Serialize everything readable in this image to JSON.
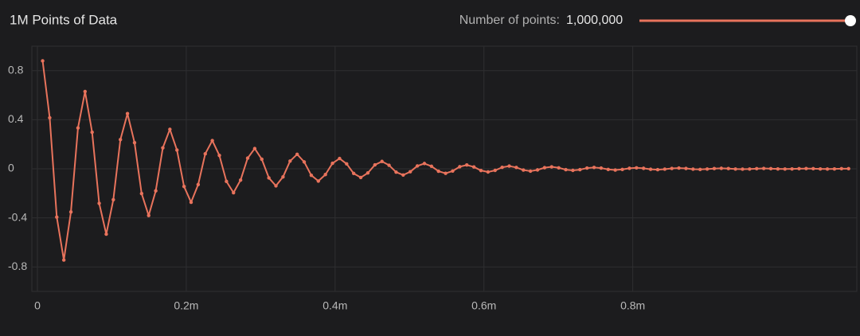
{
  "chart_data": {
    "type": "line",
    "title": "1M Points of Data",
    "color": "#e8735c",
    "grid": true,
    "xlim": [
      0,
      1.1
    ],
    "ylim": [
      -1,
      1
    ],
    "xticks": [
      0,
      {
        "value": 0.2,
        "label": "0.2m"
      },
      {
        "value": 0.4,
        "label": "0.4m"
      },
      {
        "value": 0.6,
        "label": "0.6m"
      },
      {
        "value": 0.8,
        "label": "0.8m"
      }
    ],
    "yticks": [
      -0.8,
      -0.4,
      0,
      0.4,
      0.8
    ],
    "x": [
      0.007,
      0.0165,
      0.026,
      0.0355,
      0.045,
      0.0545,
      0.064,
      0.0735,
      0.083,
      0.0925,
      0.102,
      0.1115,
      0.121,
      0.1305,
      0.14,
      0.1495,
      0.159,
      0.1685,
      0.178,
      0.1875,
      0.197,
      0.2065,
      0.216,
      0.2255,
      0.235,
      0.2445,
      0.254,
      0.2635,
      0.273,
      0.2825,
      0.292,
      0.3015,
      0.311,
      0.3205,
      0.33,
      0.3395,
      0.349,
      0.3585,
      0.368,
      0.3775,
      0.387,
      0.3965,
      0.406,
      0.4155,
      0.425,
      0.4345,
      0.444,
      0.4535,
      0.463,
      0.4725,
      0.482,
      0.4915,
      0.501,
      0.5105,
      0.52,
      0.5295,
      0.539,
      0.5485,
      0.558,
      0.5675,
      0.577,
      0.5865,
      0.596,
      0.6055,
      0.615,
      0.6245,
      0.634,
      0.6435,
      0.653,
      0.6625,
      0.672,
      0.6815,
      0.691,
      0.7005,
      0.71,
      0.7195,
      0.729,
      0.7385,
      0.748,
      0.7575,
      0.767,
      0.7765,
      0.786,
      0.7955,
      0.805,
      0.8145,
      0.824,
      0.8335,
      0.843,
      0.8525,
      0.862,
      0.8715,
      0.881,
      0.8905,
      0.9,
      0.9095,
      0.919,
      0.9285,
      0.938,
      0.9475,
      0.957,
      0.9665,
      0.976,
      0.9855,
      0.995,
      1.0045,
      1.014,
      1.0235,
      1.033,
      1.0425,
      1.052,
      1.0615,
      1.071,
      1.0805,
      1.09
    ],
    "values": [
      0.88,
      0.416,
      -0.394,
      -0.744,
      -0.352,
      0.333,
      0.63,
      0.298,
      -0.282,
      -0.533,
      -0.252,
      0.238,
      0.45,
      0.213,
      -0.202,
      -0.381,
      -0.18,
      0.171,
      0.322,
      0.153,
      -0.144,
      -0.273,
      -0.129,
      0.122,
      0.23,
      0.109,
      -0.103,
      -0.195,
      -0.092,
      0.087,
      0.165,
      0.078,
      -0.074,
      -0.139,
      -0.066,
      0.063,
      0.118,
      0.056,
      -0.053,
      -0.1,
      -0.047,
      0.045,
      0.084,
      0.04,
      -0.038,
      -0.071,
      -0.034,
      0.032,
      0.06,
      0.029,
      -0.027,
      -0.051,
      -0.024,
      0.023,
      0.043,
      0.021,
      -0.02,
      -0.037,
      -0.018,
      0.017,
      0.031,
      0.015,
      -0.014,
      -0.026,
      -0.013,
      0.012,
      0.022,
      0.011,
      -0.01,
      -0.019,
      -0.009,
      0.009,
      0.016,
      0.008,
      -0.007,
      -0.013,
      -0.007,
      0.006,
      0.011,
      0.006,
      -0.005,
      -0.01,
      -0.005,
      0.004,
      0.008,
      0.004,
      -0.004,
      -0.007,
      -0.003,
      0.003,
      0.006,
      0.003,
      -0.003,
      -0.005,
      -0.002,
      0.002,
      0.004,
      0.002,
      -0.002,
      -0.003,
      -0.002,
      0.001,
      0.003,
      0.001,
      -0.001,
      -0.002,
      -0.001,
      0.001,
      0.002,
      0.001,
      -0.001,
      -0.002,
      -0.001,
      0.001,
      0.001
    ]
  },
  "controls": {
    "label": "Number of points:",
    "value": "1,000,000"
  }
}
